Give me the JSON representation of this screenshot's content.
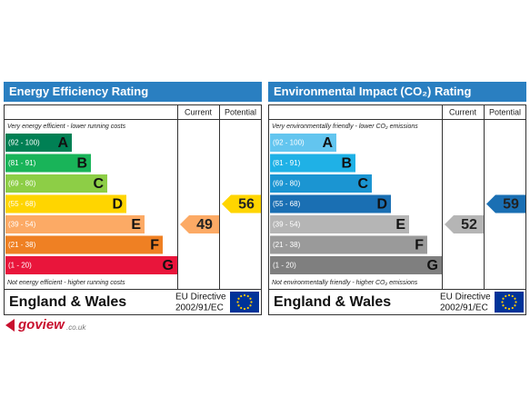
{
  "panels": [
    {
      "title": "Energy Efficiency Rating",
      "column_headers": [
        "Current",
        "Potential"
      ],
      "top_note": "Very energy efficient - lower running costs",
      "bottom_note": "Not energy efficient - higher running costs",
      "bands": [
        {
          "range": "(92 - 100)",
          "letter": "A",
          "color": "#008054"
        },
        {
          "range": "(81 - 91)",
          "letter": "B",
          "color": "#19b459"
        },
        {
          "range": "(69 - 80)",
          "letter": "C",
          "color": "#8dce46"
        },
        {
          "range": "(55 - 68)",
          "letter": "D",
          "color": "#ffd500"
        },
        {
          "range": "(39 - 54)",
          "letter": "E",
          "color": "#fcaa65"
        },
        {
          "range": "(21 - 38)",
          "letter": "F",
          "color": "#ef8023"
        },
        {
          "range": "(1 - 20)",
          "letter": "G",
          "color": "#e9153b"
        }
      ],
      "current": 49,
      "potential": 56,
      "region": "England & Wales",
      "directive": [
        "EU Directive",
        "2002/91/EC"
      ]
    },
    {
      "title": "Environmental Impact (CO₂) Rating",
      "column_headers": [
        "Current",
        "Potential"
      ],
      "top_note": "Very environmentally friendly - lower CO₂ emissions",
      "bottom_note": "Not environmentally friendly - higher CO₂ emissions",
      "bands": [
        {
          "range": "(92 - 100)",
          "letter": "A",
          "color": "#63c5ef"
        },
        {
          "range": "(81 - 91)",
          "letter": "B",
          "color": "#1fb1e6"
        },
        {
          "range": "(69 - 80)",
          "letter": "C",
          "color": "#1b95d2"
        },
        {
          "range": "(55 - 68)",
          "letter": "D",
          "color": "#1a6fb3"
        },
        {
          "range": "(39 - 54)",
          "letter": "E",
          "color": "#b5b5b5"
        },
        {
          "range": "(21 - 38)",
          "letter": "F",
          "color": "#9a9a9a"
        },
        {
          "range": "(1 - 20)",
          "letter": "G",
          "color": "#7f7f7f"
        }
      ],
      "current": 52,
      "potential": 59,
      "region": "England & Wales",
      "directive": [
        "EU Directive",
        "2002/91/EC"
      ]
    }
  ],
  "logo": {
    "name": "goview",
    "domain": ".co.uk"
  }
}
